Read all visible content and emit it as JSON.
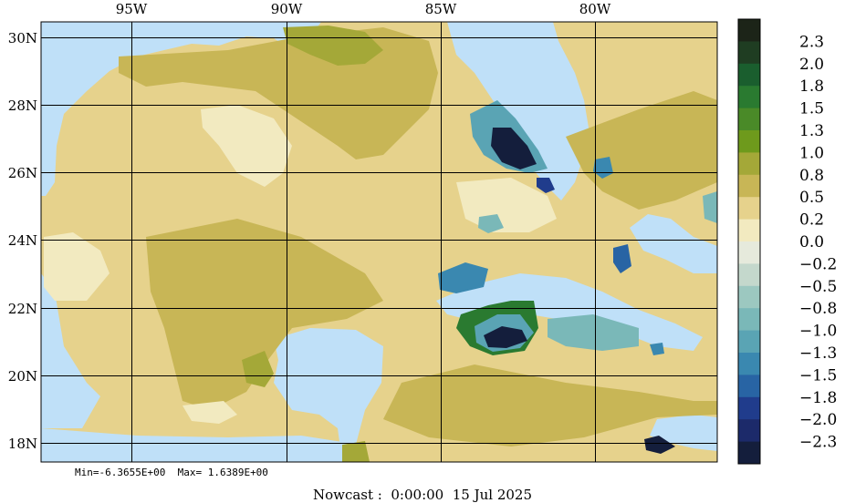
{
  "map": {
    "longitude_labels": [
      "95W",
      "90W",
      "85W",
      "80W"
    ],
    "latitude_labels": [
      "30N",
      "28N",
      "26N",
      "24N",
      "22N",
      "20N",
      "18N"
    ]
  },
  "colorbar": {
    "labels": [
      "2.3",
      "2.0",
      "1.8",
      "1.5",
      "1.3",
      "1.0",
      "0.8",
      "0.5",
      "0.2",
      "0.0",
      "−0.2",
      "−0.5",
      "−0.8",
      "−1.0",
      "−1.3",
      "−1.5",
      "−1.8",
      "−2.0",
      "−2.3"
    ],
    "colors": [
      "#1c2418",
      "#1f3d22",
      "#1a5e2e",
      "#2a7a30",
      "#4a8a28",
      "#6e9a1c",
      "#a4a838",
      "#c8b656",
      "#e6d28c",
      "#f2eac0",
      "#e6eadc",
      "#c4d8cc",
      "#9cc8c0",
      "#7ab8b8",
      "#5aa4b4",
      "#3a88b0",
      "#2864a4",
      "#203c8c",
      "#1c2a6a",
      "#141e3c"
    ]
  },
  "stats": {
    "min_label": "Min=-6.3655E+00",
    "max_label": "Max= 1.6389E+00"
  },
  "caption": "Nowcast :  0:00:00  15 Jul 2025",
  "palette": {
    "water": "#bfe0f8",
    "land_base": "#e6d28c",
    "high": "#c8b656",
    "higher": "#a4a838",
    "low": "#f2eac0"
  }
}
